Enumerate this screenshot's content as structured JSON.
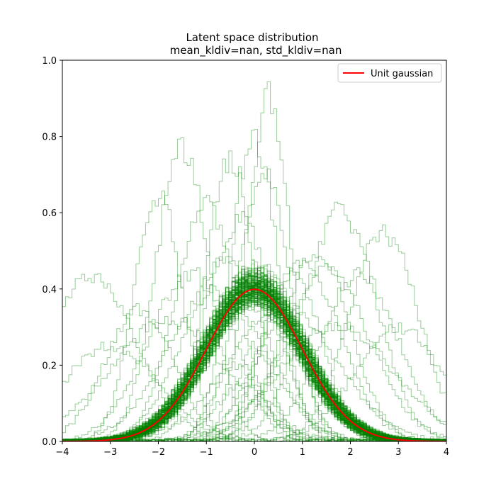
{
  "chart_data": {
    "type": "line",
    "title": "Latent space distribution",
    "subtitle": "mean_kldiv=nan, std_kldiv=nan",
    "xlabel": "",
    "ylabel": "",
    "xlim": [
      -4,
      4
    ],
    "ylim": [
      0,
      1
    ],
    "xticks": [
      -4,
      -3,
      -2,
      -1,
      0,
      1,
      2,
      3,
      4
    ],
    "yticks": [
      0.0,
      0.2,
      0.4,
      0.6,
      0.8,
      1.0
    ],
    "xtick_labels": [
      "−4",
      "−3",
      "−2",
      "−1",
      "0",
      "1",
      "2",
      "3",
      "4"
    ],
    "ytick_labels": [
      "0.0",
      "0.2",
      "0.4",
      "0.6",
      "0.8",
      "1.0"
    ],
    "grid": false,
    "legend": {
      "placement": "upper-right",
      "entries": [
        {
          "label": "Unit gaussian",
          "color": "#ff0000"
        }
      ]
    },
    "reference_curve": {
      "name": "Unit gaussian",
      "type": "pdf",
      "mean": 0,
      "std": 1,
      "color": "#ff0000"
    },
    "histograms": {
      "description_units": "each entry is a latent dimension's normalized histogram, described by mean, std, and peak density",
      "color": "#008000",
      "near_unit_count": 180,
      "dims": [
        {
          "mean": -3.4,
          "std": 0.95,
          "peak": 0.43
        },
        {
          "mean": 2.7,
          "std": 0.72,
          "peak": 0.55
        },
        {
          "mean": 1.8,
          "std": 0.75,
          "peak": 0.6
        },
        {
          "mean": -1.5,
          "std": 0.55,
          "peak": 0.77
        },
        {
          "mean": -2.0,
          "std": 0.5,
          "peak": 0.65
        },
        {
          "mean": 0.0,
          "std": 0.5,
          "peak": 0.8
        },
        {
          "mean": 0.3,
          "std": 0.45,
          "peak": 0.9
        },
        {
          "mean": -0.5,
          "std": 0.5,
          "peak": 0.75
        },
        {
          "mean": -1.0,
          "std": 0.65,
          "peak": 0.62
        },
        {
          "mean": 1.0,
          "std": 0.8,
          "peak": 0.47
        },
        {
          "mean": 1.5,
          "std": 0.9,
          "peak": 0.45
        },
        {
          "mean": -0.8,
          "std": 1.0,
          "peak": 0.4
        },
        {
          "mean": 0.6,
          "std": 1.1,
          "peak": 0.36
        },
        {
          "mean": -0.3,
          "std": 0.7,
          "peak": 0.58
        },
        {
          "mean": 0.8,
          "std": 0.6,
          "peak": 0.45
        },
        {
          "mean": -1.3,
          "std": 0.9,
          "peak": 0.44
        },
        {
          "mean": 2.2,
          "std": 0.8,
          "peak": 0.44
        },
        {
          "mean": -2.4,
          "std": 0.7,
          "peak": 0.35
        },
        {
          "mean": 0.2,
          "std": 0.55,
          "peak": 0.7
        },
        {
          "mean": 1.3,
          "std": 0.7,
          "peak": 0.5
        },
        {
          "mean": -0.6,
          "std": 0.85,
          "peak": 0.47
        },
        {
          "mean": 0.0,
          "std": 0.35,
          "peak": 0.25
        },
        {
          "mean": 0.4,
          "std": 0.4,
          "peak": 0.3
        },
        {
          "mean": -0.4,
          "std": 0.45,
          "peak": 0.2
        },
        {
          "mean": 0.1,
          "std": 0.3,
          "peak": 0.12
        },
        {
          "mean": 0.5,
          "std": 0.5,
          "peak": 0.35
        },
        {
          "mean": -0.2,
          "std": 0.6,
          "peak": 0.15
        },
        {
          "mean": 0.9,
          "std": 0.55,
          "peak": 0.28
        },
        {
          "mean": 3.0,
          "std": 0.9,
          "peak": 0.3
        },
        {
          "mean": -3.0,
          "std": 1.0,
          "peak": 0.25
        },
        {
          "mean": -1.8,
          "std": 1.2,
          "peak": 0.32
        },
        {
          "mean": 1.7,
          "std": 1.2,
          "peak": 0.3
        }
      ]
    }
  }
}
